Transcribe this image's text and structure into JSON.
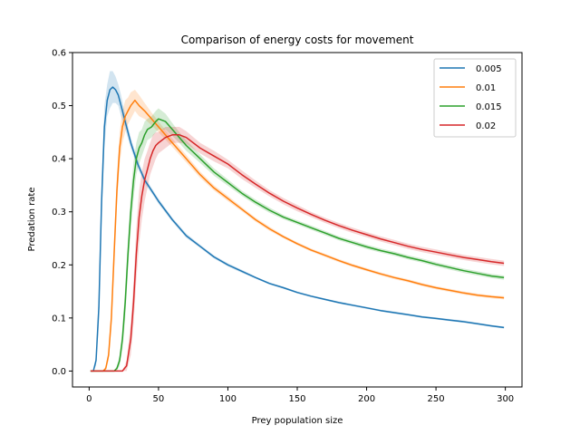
{
  "chart_data": {
    "type": "line",
    "title": "Comparison of energy costs for movement",
    "xlabel": "Prey population size",
    "ylabel": "Predation rate",
    "xlim": [
      -12,
      312
    ],
    "ylim": [
      -0.03,
      0.6
    ],
    "xticks": [
      0,
      50,
      100,
      150,
      200,
      250,
      300
    ],
    "yticks": [
      0.0,
      0.1,
      0.2,
      0.3,
      0.4,
      0.5,
      0.6
    ],
    "xtick_labels": [
      "0",
      "50",
      "100",
      "150",
      "200",
      "250",
      "300"
    ],
    "ytick_labels": [
      "0.0",
      "0.1",
      "0.2",
      "0.3",
      "0.4",
      "0.5",
      "0.6"
    ],
    "grid": false,
    "legend_position": "top-right",
    "colors": [
      "#1f77b4",
      "#ff7f0e",
      "#2ca02c",
      "#d62728"
    ],
    "series": [
      {
        "name": "0.005",
        "color": "#1f77b4",
        "x": [
          1,
          3,
          5,
          7,
          9,
          11,
          13,
          15,
          17,
          19,
          21,
          23,
          25,
          30,
          35,
          40,
          45,
          50,
          60,
          70,
          80,
          90,
          100,
          110,
          120,
          130,
          140,
          150,
          160,
          170,
          180,
          190,
          200,
          210,
          220,
          230,
          240,
          250,
          260,
          270,
          280,
          290,
          299
        ],
        "y": [
          0.0,
          0.0,
          0.02,
          0.12,
          0.32,
          0.46,
          0.51,
          0.53,
          0.535,
          0.53,
          0.52,
          0.5,
          0.48,
          0.43,
          0.39,
          0.36,
          0.34,
          0.32,
          0.285,
          0.255,
          0.235,
          0.215,
          0.2,
          0.188,
          0.176,
          0.165,
          0.157,
          0.148,
          0.141,
          0.135,
          0.129,
          0.124,
          0.119,
          0.114,
          0.11,
          0.106,
          0.102,
          0.099,
          0.096,
          0.093,
          0.089,
          0.085,
          0.082
        ],
        "band": [
          0.0,
          0.0,
          0.01,
          0.03,
          0.04,
          0.04,
          0.03,
          0.035,
          0.03,
          0.025,
          0.02,
          0.02,
          0.015,
          0.01,
          0.008,
          0.006,
          0.005,
          0.005,
          0.004,
          0.004,
          0.003,
          0.003,
          0.003,
          0.003,
          0.002,
          0.002,
          0.002,
          0.002,
          0.002,
          0.002,
          0.002,
          0.002,
          0.002,
          0.002,
          0.002,
          0.002,
          0.002,
          0.002,
          0.002,
          0.002,
          0.002,
          0.002,
          0.002
        ]
      },
      {
        "name": "0.01",
        "color": "#ff7f0e",
        "x": [
          1,
          5,
          10,
          12,
          14,
          16,
          18,
          20,
          22,
          24,
          26,
          28,
          30,
          33,
          36,
          40,
          45,
          50,
          60,
          70,
          80,
          90,
          100,
          110,
          120,
          130,
          140,
          150,
          160,
          170,
          180,
          190,
          200,
          210,
          220,
          230,
          240,
          250,
          260,
          270,
          280,
          290,
          299
        ],
        "y": [
          0.0,
          0.0,
          0.0,
          0.005,
          0.03,
          0.1,
          0.22,
          0.34,
          0.42,
          0.46,
          0.48,
          0.49,
          0.5,
          0.51,
          0.5,
          0.49,
          0.475,
          0.46,
          0.43,
          0.4,
          0.37,
          0.345,
          0.325,
          0.305,
          0.285,
          0.268,
          0.253,
          0.24,
          0.228,
          0.218,
          0.208,
          0.199,
          0.191,
          0.183,
          0.176,
          0.17,
          0.163,
          0.157,
          0.152,
          0.147,
          0.143,
          0.14,
          0.138
        ],
        "band": [
          0.0,
          0.0,
          0.0,
          0.005,
          0.01,
          0.02,
          0.03,
          0.03,
          0.03,
          0.03,
          0.03,
          0.025,
          0.025,
          0.02,
          0.02,
          0.015,
          0.012,
          0.01,
          0.008,
          0.007,
          0.006,
          0.005,
          0.005,
          0.004,
          0.004,
          0.004,
          0.003,
          0.003,
          0.003,
          0.003,
          0.003,
          0.003,
          0.003,
          0.003,
          0.003,
          0.003,
          0.003,
          0.003,
          0.003,
          0.003,
          0.003,
          0.003,
          0.003
        ]
      },
      {
        "name": "0.015",
        "color": "#2ca02c",
        "x": [
          1,
          10,
          18,
          20,
          22,
          24,
          26,
          28,
          30,
          32,
          34,
          36,
          38,
          40,
          42,
          45,
          48,
          50,
          55,
          60,
          65,
          70,
          80,
          90,
          100,
          110,
          120,
          130,
          140,
          150,
          160,
          170,
          180,
          190,
          200,
          210,
          220,
          230,
          240,
          250,
          260,
          270,
          280,
          290,
          299
        ],
        "y": [
          0.0,
          0.0,
          0.0,
          0.005,
          0.02,
          0.06,
          0.13,
          0.22,
          0.3,
          0.36,
          0.4,
          0.42,
          0.43,
          0.445,
          0.455,
          0.46,
          0.47,
          0.475,
          0.47,
          0.455,
          0.44,
          0.425,
          0.4,
          0.375,
          0.355,
          0.335,
          0.318,
          0.303,
          0.29,
          0.28,
          0.27,
          0.26,
          0.25,
          0.242,
          0.234,
          0.227,
          0.221,
          0.214,
          0.208,
          0.201,
          0.195,
          0.189,
          0.184,
          0.179,
          0.176
        ],
        "band": [
          0.0,
          0.0,
          0.0,
          0.005,
          0.01,
          0.02,
          0.03,
          0.03,
          0.035,
          0.035,
          0.03,
          0.03,
          0.025,
          0.025,
          0.02,
          0.02,
          0.02,
          0.02,
          0.015,
          0.012,
          0.01,
          0.01,
          0.008,
          0.007,
          0.006,
          0.005,
          0.005,
          0.005,
          0.004,
          0.004,
          0.004,
          0.004,
          0.004,
          0.004,
          0.004,
          0.004,
          0.004,
          0.004,
          0.004,
          0.004,
          0.004,
          0.004,
          0.004,
          0.004,
          0.004
        ]
      },
      {
        "name": "0.02",
        "color": "#d62728",
        "x": [
          1,
          15,
          24,
          27,
          30,
          32,
          34,
          36,
          38,
          40,
          42,
          44,
          46,
          48,
          50,
          55,
          60,
          65,
          70,
          80,
          90,
          100,
          110,
          120,
          130,
          140,
          150,
          160,
          170,
          180,
          190,
          200,
          210,
          220,
          230,
          240,
          250,
          260,
          270,
          280,
          290,
          299
        ],
        "y": [
          0.0,
          0.0,
          0.0,
          0.01,
          0.06,
          0.13,
          0.22,
          0.29,
          0.33,
          0.36,
          0.38,
          0.4,
          0.415,
          0.425,
          0.43,
          0.44,
          0.445,
          0.445,
          0.44,
          0.42,
          0.405,
          0.39,
          0.37,
          0.352,
          0.335,
          0.32,
          0.307,
          0.295,
          0.284,
          0.274,
          0.265,
          0.257,
          0.249,
          0.242,
          0.235,
          0.229,
          0.224,
          0.219,
          0.214,
          0.21,
          0.206,
          0.203
        ],
        "band": [
          0.0,
          0.0,
          0.0,
          0.01,
          0.03,
          0.04,
          0.05,
          0.05,
          0.045,
          0.04,
          0.035,
          0.03,
          0.03,
          0.025,
          0.02,
          0.02,
          0.015,
          0.015,
          0.012,
          0.01,
          0.01,
          0.008,
          0.008,
          0.007,
          0.006,
          0.006,
          0.006,
          0.005,
          0.005,
          0.005,
          0.005,
          0.005,
          0.005,
          0.005,
          0.005,
          0.005,
          0.005,
          0.005,
          0.005,
          0.005,
          0.005,
          0.005
        ]
      }
    ]
  }
}
